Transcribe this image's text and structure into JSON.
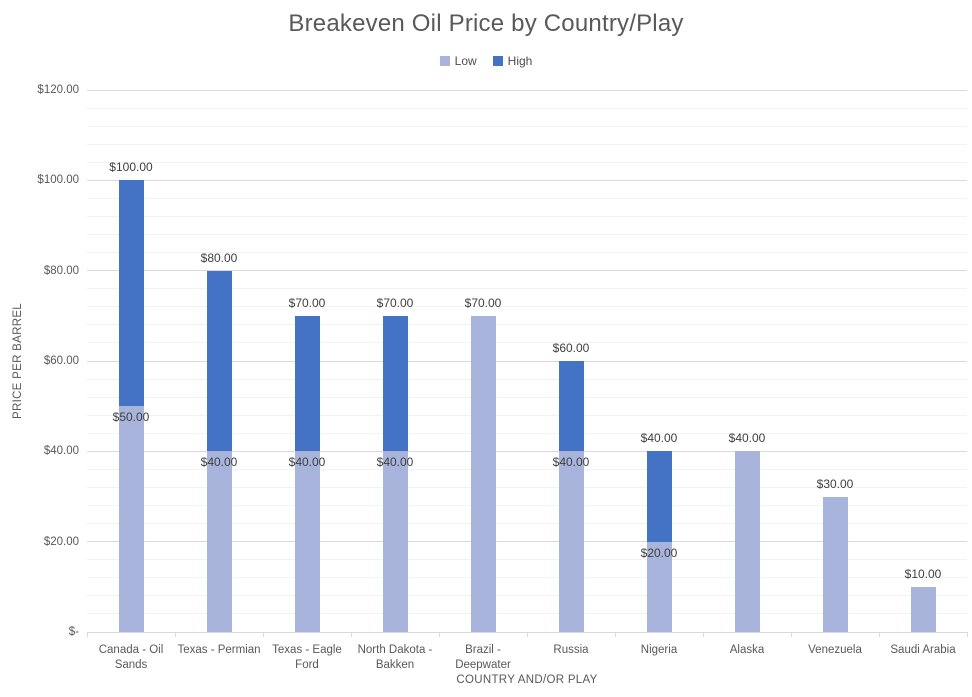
{
  "chart_data": {
    "type": "bar",
    "stacked": true,
    "title": "Breakeven Oil Price by Country/Play",
    "xlabel": "COUNTRY AND/OR PLAY",
    "ylabel": "PRICE PER BARREL",
    "ylim": [
      0,
      120
    ],
    "y_major_unit": 20,
    "y_minor_unit": 4,
    "grid": "horizontal major and minor gridlines",
    "legend_position": "top",
    "y_tick_labels": [
      "$-",
      "$20.00",
      "$40.00",
      "$60.00",
      "$80.00",
      "$100.00",
      "$120.00"
    ],
    "series": [
      {
        "name": "Low",
        "color": "#A8B4DB"
      },
      {
        "name": "High",
        "color": "#4472C4"
      }
    ],
    "categories": [
      "Canada - Oil Sands",
      "Texas - Permian",
      "Texas - Eagle Ford",
      "North Dakota - Bakken",
      "Brazil - Deepwater",
      "Russia",
      "Nigeria",
      "Alaska",
      "Venezuela",
      "Saudi Arabia"
    ],
    "bars": [
      {
        "category": "Canada - Oil Sands",
        "low": 50,
        "high": 100,
        "low_label": "$50.00",
        "high_label": "$100.00"
      },
      {
        "category": "Texas - Permian",
        "low": 40,
        "high": 80,
        "low_label": "$40.00",
        "high_label": "$80.00"
      },
      {
        "category": "Texas - Eagle Ford",
        "low": 40,
        "high": 70,
        "low_label": "$40.00",
        "high_label": "$70.00"
      },
      {
        "category": "North Dakota - Bakken",
        "low": 40,
        "high": 70,
        "low_label": "$40.00",
        "high_label": "$70.00"
      },
      {
        "category": "Brazil - Deepwater",
        "low": 70,
        "high": null,
        "low_label": "$70.00",
        "high_label": null
      },
      {
        "category": "Russia",
        "low": 40,
        "high": 60,
        "low_label": "$40.00",
        "high_label": "$60.00"
      },
      {
        "category": "Nigeria",
        "low": 20,
        "high": 40,
        "low_label": "$20.00",
        "high_label": "$40.00"
      },
      {
        "category": "Alaska",
        "low": 40,
        "high": null,
        "low_label": "$40.00",
        "high_label": null
      },
      {
        "category": "Venezuela",
        "low": 30,
        "high": null,
        "low_label": "$30.00",
        "high_label": null
      },
      {
        "category": "Saudi Arabia",
        "low": 10,
        "high": null,
        "low_label": "$10.00",
        "high_label": null
      }
    ],
    "colors": {
      "low_series": "#A8B4DB",
      "high_series": "#4472C4",
      "major_gridline": "#D9D9D9",
      "minor_gridline": "#F2F2F2",
      "title_text": "#595959",
      "axis_text": "#595959",
      "data_label_text": "#3F3F3F"
    }
  }
}
